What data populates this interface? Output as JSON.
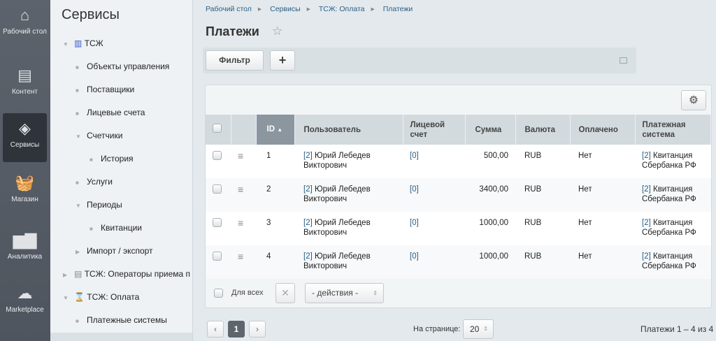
{
  "leftbar": [
    {
      "label": "Рабочий стол",
      "icon": "home-icon"
    },
    {
      "label": "Контент",
      "icon": "document-icon"
    },
    {
      "label": "Сервисы",
      "icon": "layers-icon",
      "active": true
    },
    {
      "label": "Магазин",
      "icon": "basket-icon"
    },
    {
      "label": "Аналитика",
      "icon": "chart-icon"
    },
    {
      "label": "Marketplace",
      "icon": "cloud-download-icon"
    }
  ],
  "menu": {
    "title": "Сервисы",
    "items": [
      {
        "label": "ТСЖ",
        "marker": "▼"
      },
      {
        "label": "Объекты управления",
        "marker": "■"
      },
      {
        "label": "Поставщики",
        "marker": "■"
      },
      {
        "label": "Лицевые счета",
        "marker": "■"
      },
      {
        "label": "Счетчики",
        "marker": "▼"
      },
      {
        "label": "История",
        "marker": "■"
      },
      {
        "label": "Услуги",
        "marker": "■"
      },
      {
        "label": "Периоды",
        "marker": "▼"
      },
      {
        "label": "Квитанции",
        "marker": "■"
      },
      {
        "label": "Импорт / экспорт",
        "marker": "▶"
      },
      {
        "label": "ТСЖ: Операторы приема п.",
        "marker": "▶"
      },
      {
        "label": "ТСЖ: Оплата",
        "marker": "▼"
      },
      {
        "label": "Платежные системы",
        "marker": "■"
      }
    ]
  },
  "breadcrumbs": [
    "Рабочий стол",
    "Сервисы",
    "ТСЖ: Оплата",
    "Платежи"
  ],
  "title": "Платежи",
  "filter": {
    "label": "Фильтр",
    "add": "+"
  },
  "table": {
    "headers": [
      "ID",
      "Пользователь",
      "Лицевой счет",
      "Сумма",
      "Валюта",
      "Оплачено",
      "Платежная система"
    ],
    "rows": [
      {
        "id": "1",
        "user_link": "[2]",
        "user": "Юрий Лебедев Викторович",
        "account": "[0]",
        "sum": "500,00",
        "currency": "RUB",
        "paid": "Нет",
        "system_link": "[2]",
        "system": "Квитанция Сбербанка РФ"
      },
      {
        "id": "2",
        "user_link": "[2]",
        "user": "Юрий Лебедев Викторович",
        "account": "[0]",
        "sum": "3400,00",
        "currency": "RUB",
        "paid": "Нет",
        "system_link": "[2]",
        "system": "Квитанция Сбербанка РФ"
      },
      {
        "id": "3",
        "user_link": "[2]",
        "user": "Юрий Лебедев Викторович",
        "account": "[0]",
        "sum": "1000,00",
        "currency": "RUB",
        "paid": "Нет",
        "system_link": "[2]",
        "system": "Квитанция Сбербанка РФ"
      },
      {
        "id": "4",
        "user_link": "[2]",
        "user": "Юрий Лебедев Викторович",
        "account": "[0]",
        "sum": "1000,00",
        "currency": "RUB",
        "paid": "Нет",
        "system_link": "[2]",
        "system": "Квитанция Сбербанка РФ"
      }
    ]
  },
  "footer": {
    "for_all": "Для всех",
    "actions": "- действия -"
  },
  "pagination": {
    "current": "1",
    "per_page_label": "На странице:",
    "per_page": "20",
    "summary": "Платежи 1 – 4 из 4"
  }
}
